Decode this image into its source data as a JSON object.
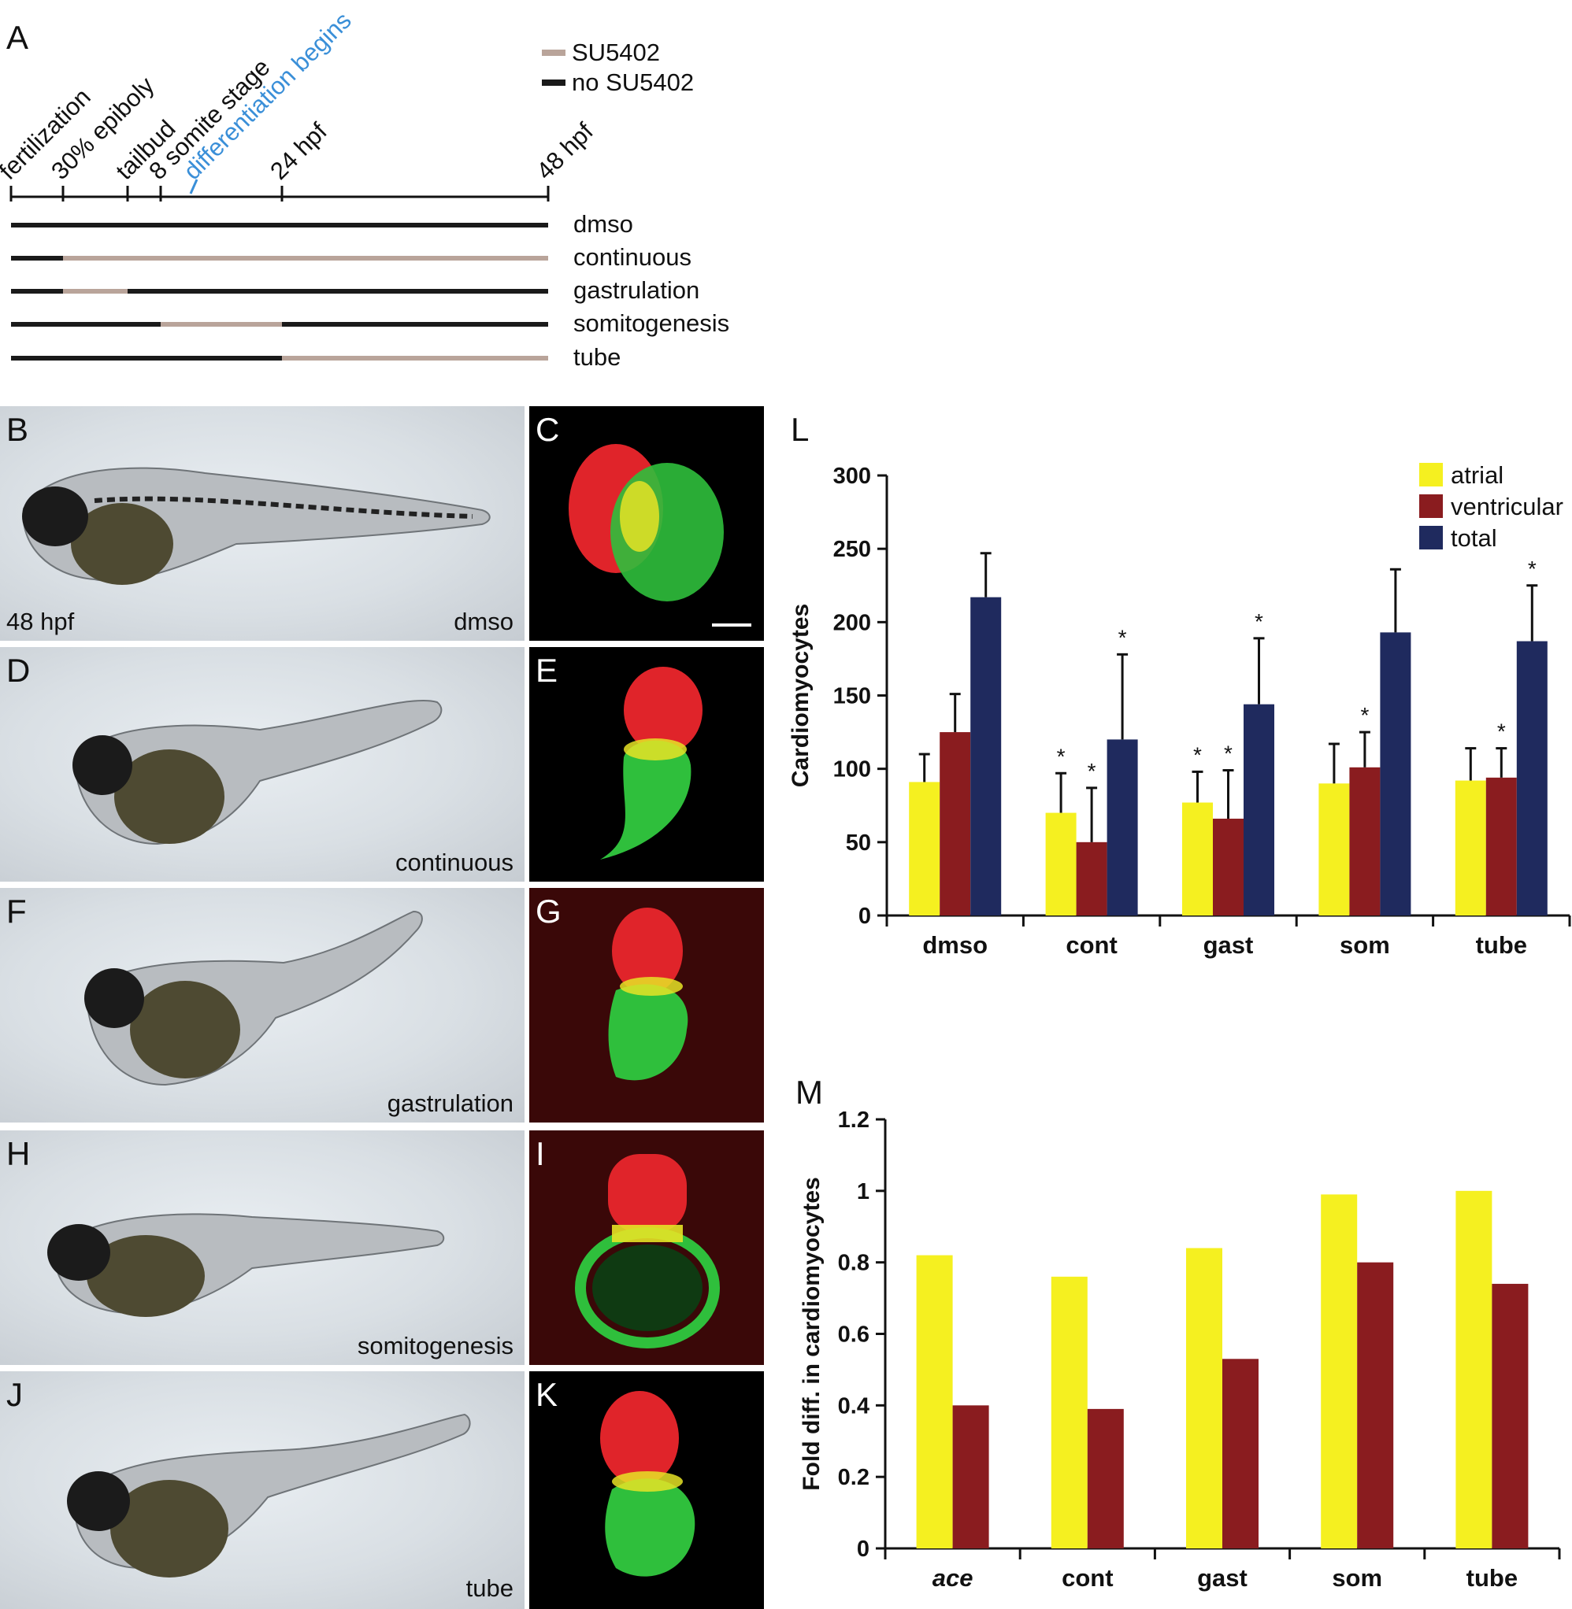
{
  "panel_A": {
    "label": "A",
    "legend": [
      {
        "text": "SU5402",
        "color": "#b9a49a"
      },
      {
        "text": "no SU5402",
        "color": "#1a1a1a"
      }
    ],
    "stages": [
      {
        "text": "fertilization",
        "hpf": 0
      },
      {
        "text": "30% epiboly",
        "hpf": 4.7
      },
      {
        "text": "tailbud",
        "hpf": 10
      },
      {
        "text": "8 somite stage",
        "hpf": 13
      },
      {
        "text": "differentiation begins",
        "hpf": 16,
        "color": "#3a8fd8"
      },
      {
        "text": "24 hpf",
        "hpf": 24
      },
      {
        "text": "48 hpf",
        "hpf": 48
      }
    ],
    "rows": [
      {
        "name": "dmso",
        "su5402_window_hpf": null
      },
      {
        "name": "continuous",
        "su5402_window_hpf": [
          4.7,
          48
        ]
      },
      {
        "name": "gastrulation",
        "su5402_window_hpf": [
          4.7,
          10
        ]
      },
      {
        "name": "somitogenesis",
        "su5402_window_hpf": [
          13,
          24
        ]
      },
      {
        "name": "tube",
        "su5402_window_hpf": [
          24,
          48
        ]
      }
    ]
  },
  "panels_images": [
    {
      "label": "B",
      "caption": "dmso",
      "extra": "48 hpf"
    },
    {
      "label": "C"
    },
    {
      "label": "D",
      "caption": "continuous"
    },
    {
      "label": "E"
    },
    {
      "label": "F",
      "caption": "gastrulation"
    },
    {
      "label": "G"
    },
    {
      "label": "H",
      "caption": "somitogenesis"
    },
    {
      "label": "I"
    },
    {
      "label": "J",
      "caption": "tube"
    },
    {
      "label": "K"
    }
  ],
  "chart_data": [
    {
      "panel": "L",
      "type": "bar",
      "ylabel": "Cardiomyocytes",
      "xlabel": "",
      "ylim": [
        0,
        300
      ],
      "yticks": [
        0,
        50,
        100,
        150,
        200,
        250,
        300
      ],
      "categories": [
        "dmso",
        "cont",
        "gast",
        "som",
        "tube"
      ],
      "series": [
        {
          "name": "atrial",
          "color": "#f5f020",
          "values": [
            91,
            70,
            77,
            90,
            92
          ],
          "errors": [
            19,
            27,
            21,
            27,
            22
          ],
          "significant": [
            false,
            true,
            true,
            false,
            false
          ]
        },
        {
          "name": "ventricular",
          "color": "#8a1c1f",
          "values": [
            125,
            50,
            66,
            101,
            94
          ],
          "errors": [
            26,
            37,
            33,
            24,
            20
          ],
          "significant": [
            false,
            true,
            true,
            true,
            true
          ]
        },
        {
          "name": "total",
          "color": "#1f2a5e",
          "values": [
            217,
            120,
            144,
            193,
            187
          ],
          "errors": [
            30,
            58,
            45,
            43,
            38
          ],
          "significant": [
            false,
            true,
            true,
            false,
            true
          ]
        }
      ],
      "legend_position": "top-right",
      "significance_marker": "*",
      "grid": false
    },
    {
      "panel": "M",
      "type": "bar",
      "ylabel": "Fold diff. in cardiomyocytes",
      "xlabel": "",
      "ylim": [
        0,
        1.2
      ],
      "yticks": [
        "0",
        "0.2",
        "0.4",
        "0.6",
        "0.8",
        "1",
        "1.2"
      ],
      "categories": [
        "ace",
        "cont",
        "gast",
        "som",
        "tube"
      ],
      "italic_categories": [
        "ace"
      ],
      "series": [
        {
          "name": "atrial",
          "color": "#f5f020",
          "values": [
            0.82,
            0.76,
            0.84,
            0.99,
            1.0
          ]
        },
        {
          "name": "ventricular",
          "color": "#8a1c1f",
          "values": [
            0.4,
            0.39,
            0.53,
            0.8,
            0.74
          ]
        }
      ],
      "grid": false
    }
  ]
}
